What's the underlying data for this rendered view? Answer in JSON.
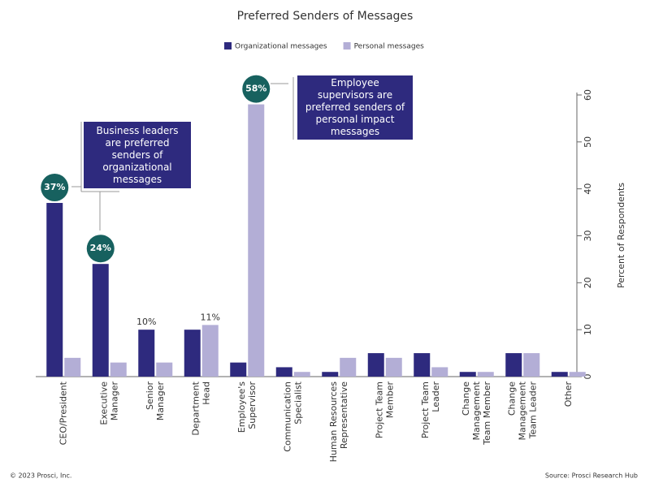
{
  "chart_data": {
    "type": "bar",
    "title": "Preferred Senders of Messages",
    "categories": [
      "CEO/President",
      "Executive\nManager",
      "Senior\nManager",
      "Department\nHead",
      "Employee's\nSupervisor",
      "Communication\nSpecialist",
      "Human Resources\nRepresentative",
      "Project Team\nMember",
      "Project Team\nLeader",
      "Change\nManagement\nTeam Member",
      "Change\nManagement\nTeam Leader",
      "Other"
    ],
    "series": [
      {
        "name": "Organizational messages",
        "color": "#2e2a7e",
        "values": [
          37,
          24,
          10,
          10,
          3,
          2,
          1,
          5,
          5,
          1,
          5,
          1
        ],
        "value_labels": [
          "37%",
          "24%",
          "10%",
          null,
          null,
          null,
          null,
          null,
          null,
          null,
          null,
          null
        ]
      },
      {
        "name": "Personal messages",
        "color": "#b3aed6",
        "values": [
          4,
          3,
          3,
          11,
          58,
          1,
          4,
          4,
          2,
          1,
          5,
          1
        ],
        "value_labels": [
          null,
          null,
          null,
          "11%",
          "58%",
          null,
          null,
          null,
          null,
          null,
          null,
          null
        ]
      }
    ],
    "ylim": [
      0,
      60
    ],
    "yticks": [
      0,
      10,
      20,
      30,
      40,
      50,
      60
    ],
    "y_label": "Percent of Respondents",
    "annotations": [
      "Business leaders are preferred senders of organizational messages",
      "Employee supervisors are preferred senders of personal impact messages"
    ],
    "copyright": "© 2023 Prosci, Inc.",
    "source": "Source: Prosci Research Hub"
  }
}
